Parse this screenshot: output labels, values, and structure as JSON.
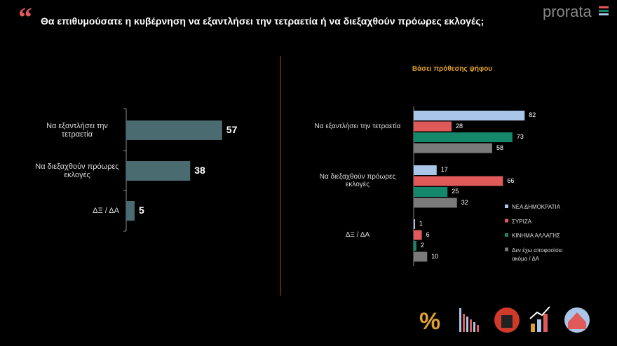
{
  "header": {
    "title": "Θα επιθυμούσατε η κυβέρνηση να εξαντλήσει την τετραετία ή να διεξαχθούν πρόωρες  εκλογές;",
    "logo": "prorata"
  },
  "chart_data": [
    {
      "type": "hbar",
      "categories": [
        "Να εξαντλήσει την τετραετία",
        "Να διεξαχθούν πρόωρες εκλογές",
        "ΔΞ / ΔΑ"
      ],
      "values": [
        57,
        38,
        5
      ],
      "color": "#4a6b70"
    },
    {
      "type": "grouped-hbar",
      "subtitle": "Βάσει πρόθεσης ψήφου",
      "categories": [
        "Να εξαντλήσει την τετραετία",
        "Να διεξαχθούν πρόωρες εκλογές",
        "ΔΞ / ΔΑ"
      ],
      "series": [
        {
          "name": "ΝΕΑ ΔΗΜΟΚΡΑΤΙΑ",
          "color": "#a9c6e8",
          "values": [
            82,
            17,
            1
          ]
        },
        {
          "name": "ΣΥΡΙΖΑ",
          "color": "#e05a5a",
          "values": [
            28,
            66,
            6
          ]
        },
        {
          "name": "ΚΙΝΗΜΑ ΑΛΛΑΓΗΣ",
          "color": "#15876a",
          "values": [
            73,
            25,
            2
          ]
        },
        {
          "name": "Δεν έχω αποφασίσει ακόμα / ΔΑ",
          "color": "#7a7a7a",
          "values": [
            58,
            32,
            10
          ]
        }
      ],
      "legend": "right"
    }
  ]
}
